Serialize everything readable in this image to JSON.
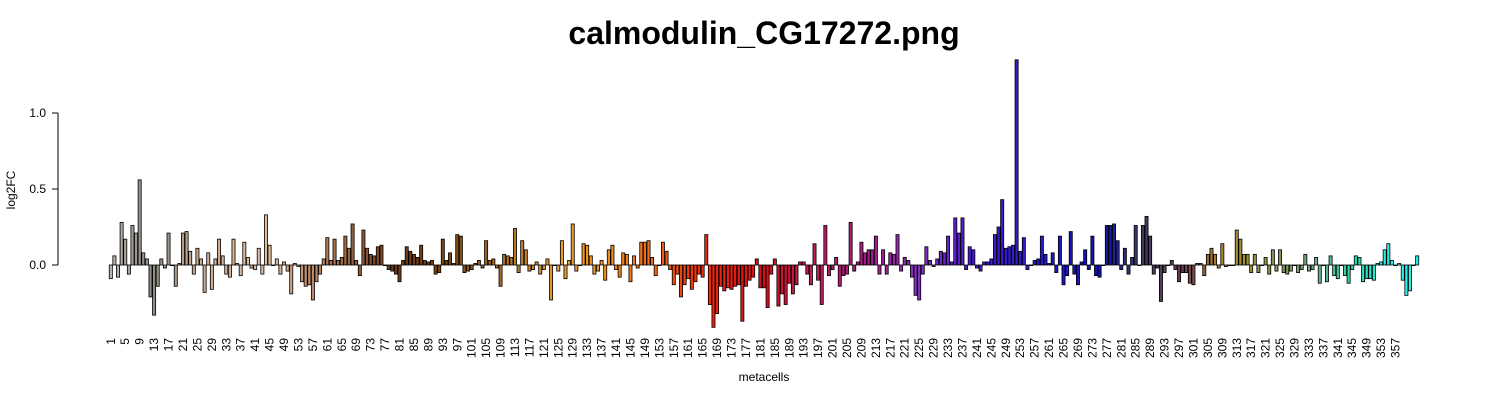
{
  "chart_data": {
    "type": "bar",
    "title": "calmodulin_CG17272.png",
    "xlabel": "metacells",
    "ylabel": "log2FC",
    "ylim": [
      -0.45,
      1.4
    ],
    "yticks": [
      0.0,
      0.5,
      1.0
    ],
    "ytick_labels": [
      "0.0",
      "0.5",
      "1.0"
    ],
    "x_start": 1,
    "x_end": 357,
    "x_tick_step": 4,
    "grid": false,
    "legend": "none",
    "color_stops": [
      {
        "at": 1,
        "color": "#bdb6ad"
      },
      {
        "at": 12,
        "color": "#8c8a85"
      },
      {
        "at": 25,
        "color": "#c7a98e"
      },
      {
        "at": 45,
        "color": "#e0c0a2"
      },
      {
        "at": 58,
        "color": "#b98460"
      },
      {
        "at": 80,
        "color": "#6b3a1c"
      },
      {
        "at": 95,
        "color": "#7d4713"
      },
      {
        "at": 110,
        "color": "#a96f2a"
      },
      {
        "at": 125,
        "color": "#e5a035"
      },
      {
        "at": 140,
        "color": "#f28a1a"
      },
      {
        "at": 152,
        "color": "#f26718"
      },
      {
        "at": 165,
        "color": "#ee2a0c"
      },
      {
        "at": 182,
        "color": "#d30e18"
      },
      {
        "at": 195,
        "color": "#c41a57"
      },
      {
        "at": 210,
        "color": "#a51b85"
      },
      {
        "at": 225,
        "color": "#8530c2"
      },
      {
        "at": 240,
        "color": "#4d17d6"
      },
      {
        "at": 255,
        "color": "#2b1cc9"
      },
      {
        "at": 275,
        "color": "#1010b6"
      },
      {
        "at": 286,
        "color": "#3c3b65"
      },
      {
        "at": 298,
        "color": "#6b3d55"
      },
      {
        "at": 310,
        "color": "#b08d2a"
      },
      {
        "at": 322,
        "color": "#8c8f4a"
      },
      {
        "at": 335,
        "color": "#6fa98c"
      },
      {
        "at": 345,
        "color": "#29d7a8"
      },
      {
        "at": 357,
        "color": "#26f2ea"
      }
    ],
    "values": [
      -0.09,
      0.06,
      -0.08,
      0.28,
      0.17,
      -0.06,
      0.26,
      0.21,
      0.56,
      0.08,
      0.04,
      -0.21,
      -0.33,
      -0.14,
      0.04,
      -0.02,
      0.21,
      0.0,
      -0.14,
      0.01,
      0.21,
      0.22,
      0.09,
      -0.06,
      0.11,
      0.04,
      -0.18,
      0.08,
      -0.16,
      0.04,
      0.17,
      0.06,
      -0.06,
      -0.08,
      0.17,
      0.01,
      -0.07,
      0.15,
      0.05,
      -0.02,
      -0.03,
      0.11,
      -0.06,
      0.33,
      0.13,
      0.0,
      0.04,
      -0.06,
      0.02,
      -0.04,
      -0.19,
      0.01,
      -0.01,
      -0.11,
      -0.14,
      -0.13,
      -0.23,
      -0.11,
      -0.06,
      0.04,
      0.18,
      0.03,
      0.17,
      0.03,
      0.05,
      0.19,
      0.11,
      0.27,
      0.03,
      -0.07,
      0.23,
      0.11,
      0.07,
      0.06,
      0.12,
      0.13,
      0.0,
      -0.03,
      -0.04,
      -0.06,
      -0.11,
      0.03,
      0.12,
      0.09,
      0.07,
      0.05,
      0.13,
      0.03,
      0.02,
      0.03,
      -0.06,
      -0.05,
      0.17,
      0.03,
      0.08,
      0.01,
      0.2,
      0.19,
      -0.05,
      -0.04,
      -0.03,
      0.01,
      0.03,
      -0.02,
      0.16,
      0.03,
      0.04,
      -0.02,
      -0.14,
      0.07,
      0.06,
      0.05,
      0.24,
      -0.05,
      0.16,
      0.1,
      -0.04,
      -0.03,
      0.02,
      -0.06,
      -0.03,
      0.04,
      -0.23,
      0.0,
      -0.04,
      0.16,
      -0.09,
      0.03,
      0.27,
      -0.04,
      0.0,
      0.14,
      0.13,
      0.06,
      -0.06,
      -0.04,
      0.03,
      -0.1,
      0.1,
      0.13,
      -0.03,
      -0.08,
      0.08,
      0.07,
      -0.11,
      0.06,
      -0.02,
      0.15,
      0.15,
      0.16,
      0.05,
      -0.07,
      0.0,
      0.15,
      0.09,
      -0.03,
      -0.13,
      -0.06,
      -0.21,
      -0.13,
      -0.09,
      -0.16,
      -0.11,
      -0.06,
      -0.08,
      0.2,
      -0.26,
      -0.41,
      -0.32,
      -0.14,
      -0.17,
      -0.15,
      -0.16,
      -0.14,
      -0.13,
      -0.37,
      -0.14,
      -0.1,
      -0.08,
      0.04,
      -0.15,
      -0.15,
      -0.28,
      -0.06,
      0.04,
      -0.27,
      -0.19,
      -0.26,
      -0.12,
      -0.19,
      -0.13,
      0.02,
      0.02,
      -0.06,
      -0.13,
      0.14,
      -0.1,
      -0.26,
      0.26,
      -0.07,
      -0.03,
      0.05,
      -0.14,
      -0.07,
      -0.06,
      0.28,
      -0.04,
      0.02,
      0.15,
      0.08,
      0.1,
      0.1,
      0.19,
      -0.06,
      0.1,
      -0.06,
      0.08,
      0.07,
      0.2,
      -0.04,
      0.05,
      0.03,
      -0.08,
      -0.2,
      -0.23,
      -0.06,
      0.12,
      0.03,
      -0.01,
      0.04,
      0.09,
      0.08,
      0.19,
      0.02,
      0.31,
      0.21,
      0.31,
      -0.03,
      0.12,
      0.1,
      -0.02,
      -0.04,
      0.02,
      0.02,
      0.04,
      0.2,
      0.25,
      0.43,
      0.11,
      0.12,
      0.13,
      1.35,
      0.09,
      0.18,
      -0.03,
      0.0,
      0.03,
      0.04,
      0.19,
      0.07,
      0.01,
      0.08,
      -0.05,
      0.19,
      -0.13,
      -0.07,
      0.22,
      -0.06,
      -0.13,
      0.02,
      0.1,
      -0.03,
      0.19,
      -0.07,
      -0.08,
      0.0,
      0.26,
      0.26,
      0.27,
      0.16,
      -0.03,
      0.11,
      -0.06,
      0.05,
      0.26,
      0.0,
      0.26,
      0.32,
      0.19,
      -0.06,
      -0.02,
      -0.24,
      -0.05,
      0.0,
      0.03,
      -0.03,
      -0.11,
      -0.05,
      -0.05,
      -0.12,
      -0.13,
      0.01,
      0.01,
      -0.07,
      0.07,
      0.11,
      0.07,
      -0.02,
      0.14,
      -0.01,
      0.0,
      0.0,
      0.23,
      0.17,
      0.07,
      0.07,
      -0.05,
      0.07,
      -0.05,
      0.0,
      0.05,
      -0.06,
      0.1,
      -0.04,
      0.1,
      -0.05,
      -0.06,
      -0.04,
      0.0,
      -0.05,
      -0.03,
      0.07,
      -0.04,
      -0.03,
      0.05,
      -0.12,
      0.0,
      -0.11,
      0.06,
      -0.07,
      -0.09,
      0.0,
      -0.07,
      -0.12,
      -0.03,
      0.06,
      0.05,
      -0.11,
      -0.09,
      -0.09,
      -0.1,
      0.01,
      0.02,
      0.1,
      0.14,
      0.03,
      0.0,
      0.01,
      -0.1,
      -0.2,
      -0.17,
      0.0,
      0.06
    ]
  }
}
